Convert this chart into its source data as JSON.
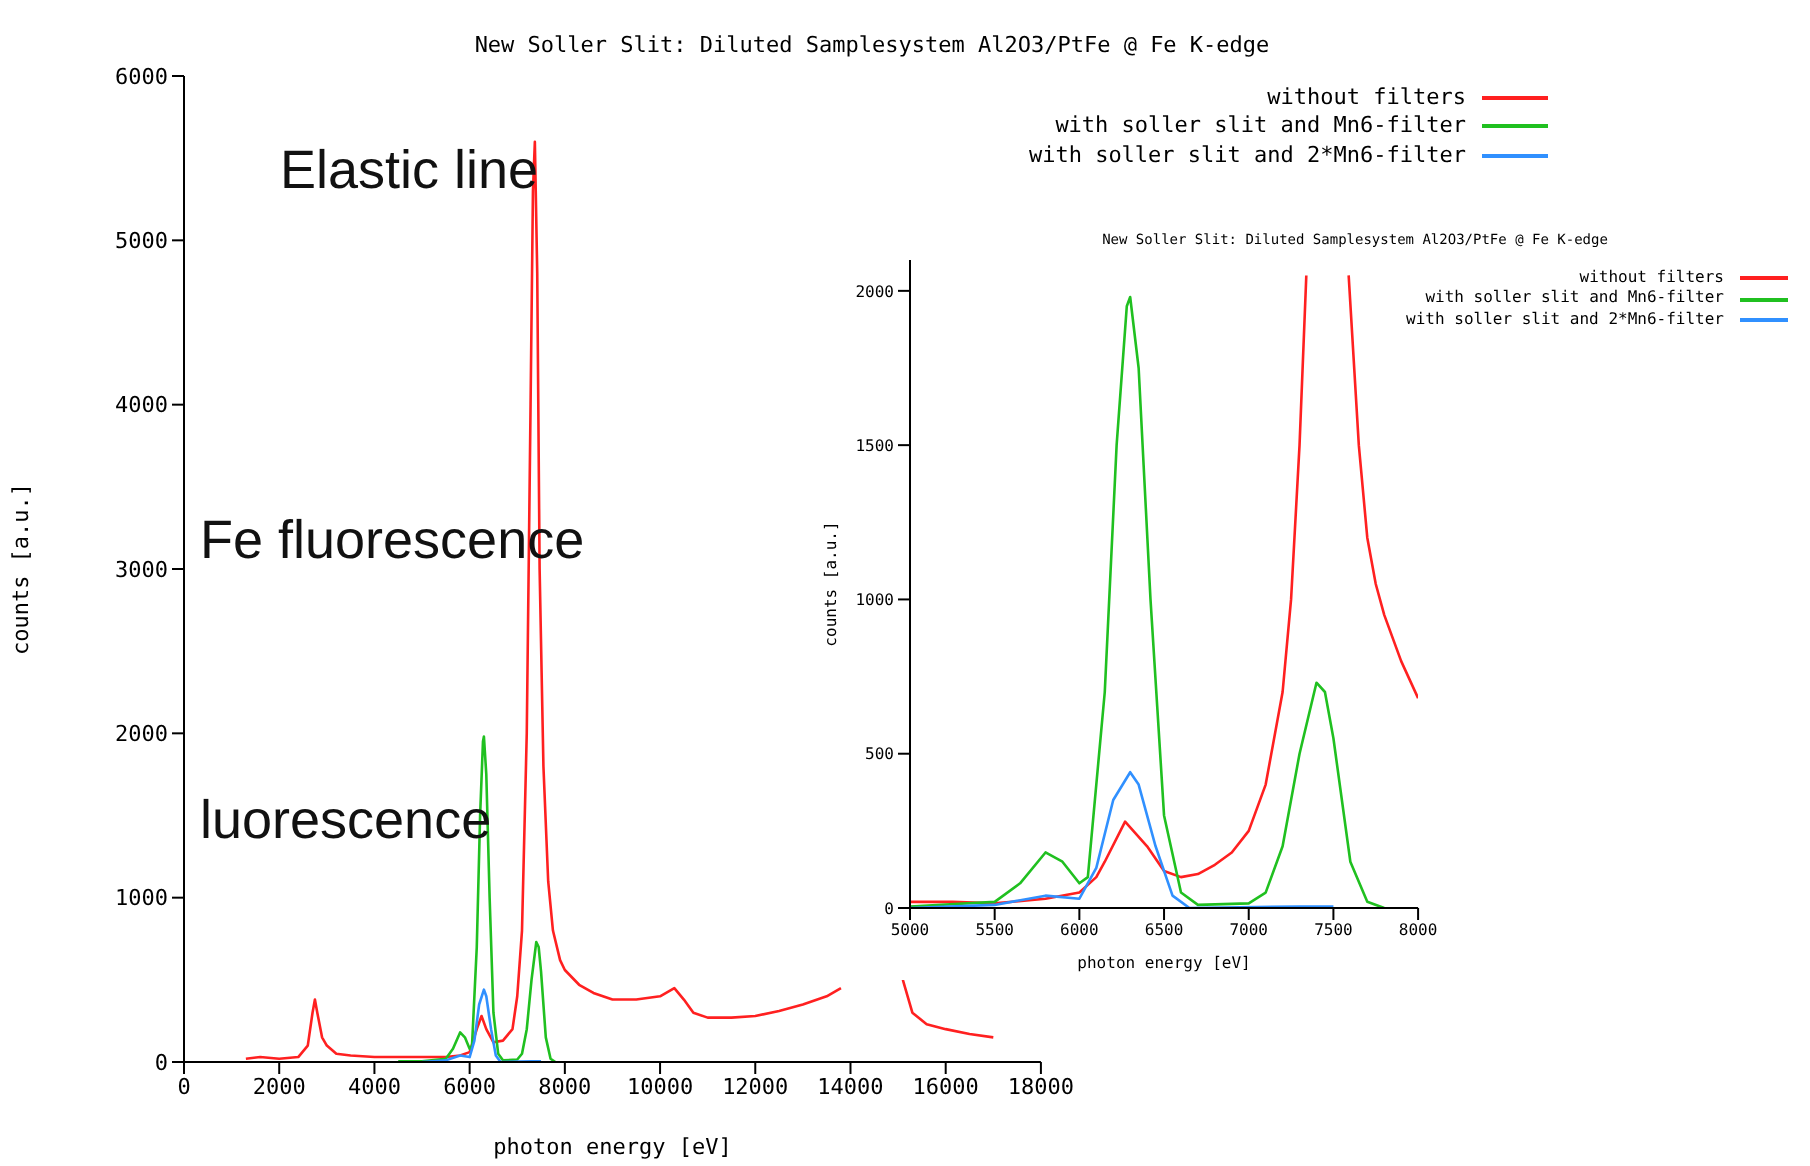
{
  "chart_data": [
    {
      "type": "line",
      "title": "New Soller Slit: Diluted Samplesystem Al2O3/PtFe @ Fe K-edge",
      "xlabel": "photon energy [eV]",
      "ylabel": "counts [a.u.]",
      "xlim": [
        0,
        18000
      ],
      "ylim": [
        0,
        6000
      ],
      "xticks": [
        0,
        2000,
        4000,
        6000,
        8000,
        10000,
        12000,
        14000,
        16000,
        18000
      ],
      "yticks": [
        0,
        1000,
        2000,
        3000,
        4000,
        5000,
        6000
      ],
      "legend": "top right",
      "marker": "none",
      "annotations": [
        "Elastic line",
        "Fe fluorescence",
        "luorescence"
      ],
      "series": [
        {
          "name": "without filters",
          "color": "#ff2020",
          "x": [
            1300,
            1600,
            2000,
            2400,
            2600,
            2700,
            2750,
            2800,
            2900,
            3000,
            3200,
            3500,
            4000,
            4500,
            5000,
            5500,
            5800,
            6000,
            6150,
            6250,
            6350,
            6500,
            6700,
            6900,
            7000,
            7100,
            7200,
            7280,
            7330,
            7370,
            7420,
            7470,
            7550,
            7650,
            7750,
            7900,
            8000,
            8300,
            8600,
            9000,
            9500,
            10000,
            10300,
            10500,
            10700,
            11000,
            11500,
            12000,
            12500,
            13000,
            13500,
            13800,
            14200,
            14500,
            14600,
            14800,
            15000,
            15100,
            15300,
            15600,
            16000,
            16500,
            17000
          ],
          "values": [
            20,
            30,
            20,
            30,
            100,
            300,
            380,
            300,
            150,
            100,
            50,
            40,
            30,
            30,
            30,
            30,
            40,
            60,
            200,
            280,
            200,
            120,
            130,
            200,
            400,
            800,
            2000,
            4000,
            5300,
            5600,
            4800,
            3000,
            1800,
            1100,
            800,
            620,
            560,
            470,
            420,
            380,
            380,
            400,
            450,
            380,
            300,
            270,
            270,
            280,
            310,
            350,
            400,
            450,
            null,
            null,
            null,
            null,
            null,
            500,
            300,
            230,
            200,
            170,
            150
          ]
        },
        {
          "name": "with soller slit and Mn6-filter",
          "color": "#20c020",
          "x": [
            4500,
            5000,
            5500,
            5650,
            5800,
            5900,
            6000,
            6050,
            6150,
            6220,
            6280,
            6300,
            6350,
            6420,
            6500,
            6600,
            6700,
            7000,
            7100,
            7200,
            7300,
            7400,
            7450,
            7500,
            7600,
            7700,
            7800
          ],
          "values": [
            5,
            5,
            20,
            80,
            180,
            150,
            80,
            100,
            700,
            1500,
            1950,
            1980,
            1750,
            1000,
            300,
            50,
            10,
            15,
            50,
            200,
            500,
            730,
            700,
            550,
            150,
            20,
            0
          ]
        },
        {
          "name": "with soller slit and 2*Mn6-filter",
          "color": "#3090ff",
          "x": [
            5000,
            5500,
            5800,
            6000,
            6100,
            6200,
            6300,
            6350,
            6450,
            6550,
            6650,
            7300,
            7500
          ],
          "values": [
            0,
            10,
            40,
            30,
            130,
            350,
            440,
            400,
            200,
            40,
            0,
            5,
            5
          ]
        }
      ]
    },
    {
      "type": "line",
      "title": "New Soller Slit: Diluted Samplesystem Al2O3/PtFe @ Fe K-edge",
      "xlabel": "photon energy [eV]",
      "ylabel": "counts [a.u.]",
      "xlim": [
        5000,
        8000
      ],
      "ylim": [
        0,
        2100
      ],
      "xticks": [
        5000,
        5500,
        6000,
        6500,
        7000,
        7500,
        8000
      ],
      "yticks": [
        0,
        500,
        1000,
        1500,
        2000
      ],
      "legend": "top right",
      "marker": "none",
      "series": [
        {
          "name": "without filters",
          "color": "#ff2020",
          "x": [
            5000,
            5250,
            5500,
            5800,
            6000,
            6100,
            6150,
            6270,
            6400,
            6500,
            6600,
            6700,
            6800,
            6900,
            7000,
            7100,
            7200,
            7250,
            7300,
            7340,
            7350,
            7580,
            7590,
            7650,
            7700,
            7750,
            7800,
            7900,
            8000
          ],
          "values": [
            20,
            20,
            15,
            30,
            50,
            100,
            150,
            280,
            200,
            120,
            100,
            110,
            140,
            180,
            250,
            400,
            700,
            1000,
            1500,
            2050,
            null,
            null,
            2050,
            1500,
            1200,
            1050,
            950,
            800,
            680
          ]
        },
        {
          "name": "with soller slit and Mn6-filter",
          "color": "#20c020",
          "x": [
            5000,
            5500,
            5650,
            5800,
            5900,
            6000,
            6050,
            6150,
            6220,
            6280,
            6300,
            6350,
            6420,
            6500,
            6600,
            6700,
            7000,
            7100,
            7200,
            7300,
            7400,
            7450,
            7500,
            7600,
            7700,
            7800
          ],
          "values": [
            5,
            20,
            80,
            180,
            150,
            80,
            100,
            700,
            1500,
            1950,
            1980,
            1750,
            1000,
            300,
            50,
            10,
            15,
            50,
            200,
            500,
            730,
            700,
            550,
            150,
            20,
            0
          ]
        },
        {
          "name": "with soller slit and 2*Mn6-filter",
          "color": "#3090ff",
          "x": [
            5000,
            5500,
            5800,
            6000,
            6100,
            6200,
            6300,
            6350,
            6450,
            6550,
            6650,
            7300,
            7500
          ],
          "values": [
            0,
            10,
            40,
            30,
            130,
            350,
            440,
            400,
            200,
            40,
            0,
            5,
            5
          ]
        }
      ]
    }
  ]
}
